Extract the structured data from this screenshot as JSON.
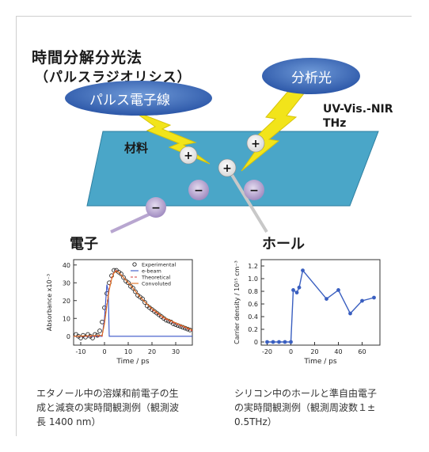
{
  "heading": {
    "title": "時間分解分光法",
    "subtitle": "（パルスラジオリシス）"
  },
  "diagram": {
    "electron_beam_label": "パルス電子線",
    "probe_light_label": "分析光",
    "probe_range_line1": "UV-Vis.-NIR",
    "probe_range_line2": "THz",
    "material_label": "材料",
    "plus_symbol": "+",
    "minus_symbol": "−",
    "electron_label": "電子",
    "hole_label": "ホール",
    "colors": {
      "ellipse": "#3f6fbf",
      "slab": "#4aa6c8",
      "bolt": "#f2e41a",
      "electron": "#b8a6d0"
    }
  },
  "captions": {
    "left": [
      "エタノール中の溶媒和前電子の生",
      "成と減衰の実時間観測例（観測波",
      "長 1400 nm）"
    ],
    "right": [
      "シリコン中のホールと準自由電子",
      "の実時間観測例（観測周波数１±",
      "0.5THz）"
    ]
  },
  "chart_data": [
    {
      "type": "scatter",
      "xlabel": "Time / ps",
      "ylabel": "Absorbance x10⁻³",
      "xlim": [
        -13,
        37
      ],
      "ylim": [
        -5,
        43
      ],
      "xticks": [
        -10,
        0,
        10,
        20,
        30
      ],
      "yticks": [
        0,
        10,
        20,
        30,
        40
      ],
      "legend_position": "top-right",
      "series": [
        {
          "name": "Experimental",
          "kind": "markers",
          "color": "#222222",
          "x": [
            -12,
            -11,
            -10,
            -9,
            -8,
            -7,
            -6,
            -5,
            -4,
            -3,
            -2,
            -1,
            0,
            1,
            2,
            3,
            4,
            5,
            6,
            7,
            8,
            9,
            10,
            11,
            12,
            13,
            14,
            15,
            16,
            17,
            18,
            19,
            20,
            21,
            22,
            23,
            24,
            25,
            26,
            27,
            28,
            29,
            30,
            31,
            32,
            33,
            34,
            35,
            36
          ],
          "y": [
            1,
            0,
            -1,
            0.5,
            -0.5,
            1,
            0,
            -1,
            1,
            0.5,
            3,
            8,
            16,
            24,
            30,
            34,
            37,
            37,
            36,
            35,
            33,
            31,
            30,
            28,
            27,
            25,
            23,
            22,
            21,
            19,
            17,
            16,
            15,
            14,
            13,
            12,
            11,
            10,
            9,
            8.5,
            8,
            7,
            6.5,
            6,
            5.5,
            5,
            4.5,
            4,
            3.5
          ]
        },
        {
          "name": "e-beam",
          "kind": "line",
          "color": "#3a55c8",
          "x": [
            -13,
            -1,
            0,
            1,
            1.6,
            2,
            37
          ],
          "y": [
            0,
            0,
            10,
            29,
            25,
            0,
            0
          ]
        },
        {
          "name": "Theoretical",
          "kind": "dashed",
          "color": "#d33a3a",
          "x": [
            -13,
            -1,
            0,
            1,
            2,
            3,
            4,
            5,
            6,
            8,
            10,
            12,
            15,
            18,
            20,
            25,
            30,
            37
          ],
          "y": [
            0,
            0,
            8,
            18,
            27,
            33,
            36,
            37,
            36,
            33,
            30,
            27,
            22,
            18,
            15,
            10,
            7,
            3
          ]
        },
        {
          "name": "Convoluted",
          "kind": "line",
          "color": "#e07020",
          "x": [
            -13,
            -1,
            0,
            1,
            2,
            3,
            4,
            5,
            6,
            8,
            10,
            12,
            15,
            18,
            20,
            25,
            30,
            37
          ],
          "y": [
            0,
            0.5,
            7,
            17,
            26,
            32,
            35.5,
            36.5,
            36,
            33,
            30,
            27,
            22,
            18,
            15.5,
            10.5,
            7.5,
            3.5
          ]
        }
      ]
    },
    {
      "type": "line",
      "xlabel": "Time / ps",
      "ylabel": "Carrier density / 10¹⁵ cm⁻³",
      "xlim": [
        -25,
        75
      ],
      "ylim": [
        -0.05,
        1.3
      ],
      "xticks": [
        -20,
        0,
        20,
        40,
        60
      ],
      "yticks": [
        0,
        0.2,
        0.4,
        0.6,
        0.8,
        1.0,
        1.2
      ],
      "ytick_labels": [
        "0",
        "0.2",
        "0.4",
        "0.6",
        "0.8",
        "1.0",
        "1.2"
      ],
      "series": [
        {
          "color": "#3a5fc0",
          "x": [
            -20,
            -15,
            -10,
            -5,
            0,
            2,
            5,
            7,
            10,
            30,
            40,
            50,
            60,
            70
          ],
          "y": [
            0,
            0,
            0,
            0,
            0,
            0.82,
            0.78,
            0.86,
            1.13,
            0.68,
            0.82,
            0.45,
            0.65,
            0.7
          ]
        }
      ]
    }
  ]
}
